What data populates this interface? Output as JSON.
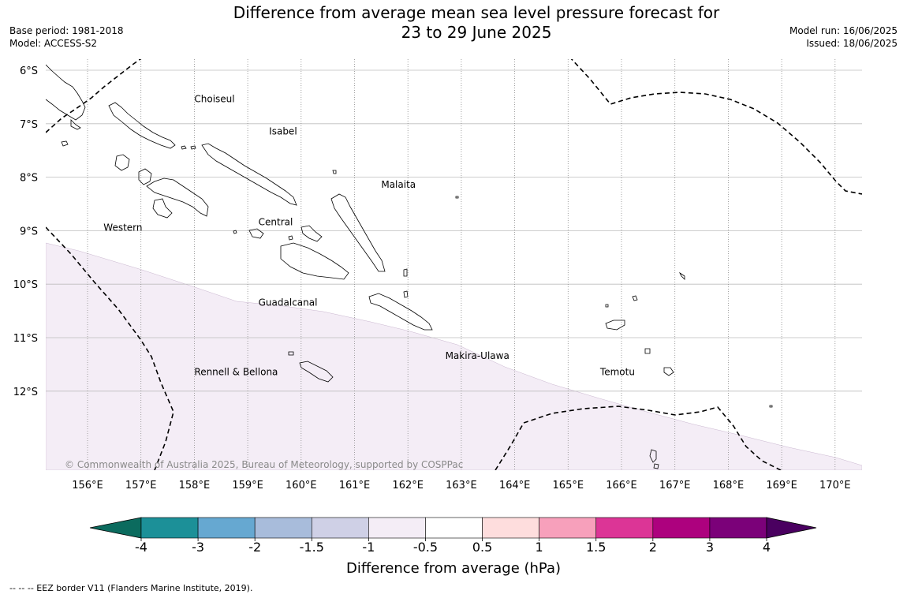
{
  "title_line1": "Difference from average mean sea level pressure forecast for",
  "title_line2": "23 to 29 June 2025",
  "meta": {
    "base_period": "Base period: 1981-2018",
    "model": "Model: ACCESS-S2",
    "model_run": "Model run: 16/06/2025",
    "issued": "Issued: 18/06/2025"
  },
  "map": {
    "lat_labels": [
      "6°S",
      "7°S",
      "8°S",
      "9°S",
      "10°S",
      "11°S",
      "12°S"
    ],
    "lon_labels": [
      "156°E",
      "157°E",
      "158°E",
      "159°E",
      "160°E",
      "161°E",
      "162°E",
      "163°E",
      "164°E",
      "165°E",
      "166°E",
      "167°E",
      "168°E",
      "169°E",
      "170°E"
    ],
    "regions": [
      {
        "name": "Choiseul",
        "lon": 158.0,
        "lat": -6.6
      },
      {
        "name": "Isabel",
        "lon": 159.4,
        "lat": -7.2
      },
      {
        "name": "Malaita",
        "lon": 161.5,
        "lat": -8.2
      },
      {
        "name": "Western",
        "lon": 156.3,
        "lat": -9.0
      },
      {
        "name": "Central",
        "lon": 159.2,
        "lat": -8.9
      },
      {
        "name": "Guadalcanal",
        "lon": 159.2,
        "lat": -10.4
      },
      {
        "name": "Makira-Ulawa",
        "lon": 162.7,
        "lat": -11.4
      },
      {
        "name": "Rennell & Bellona",
        "lon": 158.0,
        "lat": -11.7
      },
      {
        "name": "Temotu",
        "lon": 165.6,
        "lat": -11.7
      }
    ],
    "copyright": "© Commonwealth of Australia 2025, Bureau of Meteorology, supported by COSPPac",
    "shading_color": "#f4edf6"
  },
  "colorbar": {
    "colors": [
      "#0b6b5e",
      "#1c9098",
      "#66a8d1",
      "#a8bcdb",
      "#cfd0e6",
      "#f4edf6",
      "#ffffff",
      "#fedddd",
      "#f7a0bb",
      "#dc3596",
      "#ad017e",
      "#7b0179",
      "#4a0060"
    ],
    "ticks": [
      "-4",
      "-3",
      "-2",
      "-1.5",
      "-1",
      "-0.5",
      "0.5",
      "1",
      "1.5",
      "2",
      "3",
      "4"
    ],
    "label": "Difference from average (hPa)"
  },
  "footnote": "--  --  -- EEZ border V11 (Flanders Marine Institute, 2019)."
}
